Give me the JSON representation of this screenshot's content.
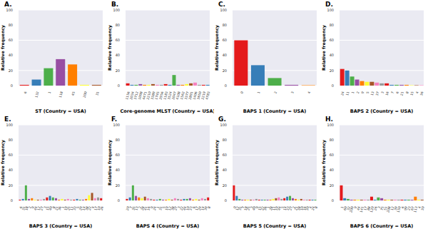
{
  "chart_data": [
    {
      "type": "bar",
      "title": "A.",
      "x_label": "ST (Country = USA)",
      "y_label": "Relative frequency",
      "categories": [
        "6",
        "132",
        "1",
        "118",
        "45",
        "200",
        "31"
      ],
      "values": [
        1,
        8,
        23,
        35,
        28,
        1,
        1
      ],
      "colors": [
        "#e41a1c",
        "#377eb8",
        "#4daf4a",
        "#984ea3",
        "#ff7f00",
        "#ffff33",
        "#a65628"
      ],
      "ylim": [
        0,
        100
      ],
      "yticks": [
        0,
        20,
        40,
        60,
        80,
        100
      ],
      "grid": true
    },
    {
      "type": "bar",
      "title": "B.",
      "x_label": "Core-genome MLST (Country = USA)",
      "y_label": "Relative frequency",
      "categories": [
        "1156",
        "2034",
        "3712",
        "1098",
        "4471",
        "2210",
        "3389",
        "1745",
        "2956",
        "1183",
        "3524",
        "2047",
        "4108",
        "1562",
        "3377",
        "2891",
        "1406",
        "3650",
        "2219",
        "4783"
      ],
      "values": [
        3,
        1,
        1,
        2,
        1,
        1,
        2,
        1,
        1,
        2,
        1,
        14,
        1,
        1,
        2,
        3,
        4,
        1,
        1,
        1
      ],
      "colors": [
        "#e41a1c",
        "#377eb8",
        "#4daf4a",
        "#984ea3",
        "#ff7f00",
        "#ffff33",
        "#a65628",
        "#f781bf",
        "#999999",
        "#e41a1c",
        "#377eb8",
        "#4daf4a",
        "#984ea3",
        "#ff7f00",
        "#ffff33",
        "#a65628",
        "#f781bf",
        "#999999",
        "#e41a1c",
        "#377eb8"
      ],
      "ylim": [
        0,
        100
      ],
      "yticks": [
        0,
        20,
        40,
        60,
        80,
        100
      ],
      "grid": true
    },
    {
      "type": "bar",
      "title": "C.",
      "x_label": "BAPS 1 (Country = USA)",
      "y_label": "Relative frequency",
      "categories": [
        "0",
        "1",
        "2",
        "3",
        "4"
      ],
      "values": [
        60,
        27,
        10,
        1,
        0.5
      ],
      "colors": [
        "#e41a1c",
        "#377eb8",
        "#4daf4a",
        "#984ea3",
        "#ff7f00"
      ],
      "ylim": [
        0,
        100
      ],
      "yticks": [
        0,
        20,
        40,
        60,
        80,
        100
      ],
      "grid": true
    },
    {
      "type": "bar",
      "title": "D.",
      "x_label": "BAPS 2 (Country = USA)",
      "y_label": "Relative frequency",
      "categories": [
        "24",
        "11",
        "1",
        "2",
        "9",
        "5",
        "13",
        "37",
        "3",
        "16",
        "7",
        "6",
        "21",
        "8",
        "15",
        "4",
        "36"
      ],
      "values": [
        22,
        20,
        12,
        8,
        6,
        5,
        5,
        4,
        3,
        3,
        1,
        1,
        1,
        1,
        0.5,
        0.5,
        0.5
      ],
      "colors": [
        "#e41a1c",
        "#377eb8",
        "#4daf4a",
        "#984ea3",
        "#ff7f00",
        "#ffff33",
        "#a65628",
        "#f781bf",
        "#999999",
        "#e41a1c",
        "#377eb8",
        "#4daf4a",
        "#984ea3",
        "#ff7f00",
        "#ffff33",
        "#a65628",
        "#f781bf"
      ],
      "ylim": [
        0,
        100
      ],
      "yticks": [
        0,
        20,
        40,
        60,
        80,
        100
      ],
      "grid": true
    },
    {
      "type": "bar",
      "title": "E.",
      "x_label": "BAPS 3 (Country = USA)",
      "y_label": "Relative frequency",
      "categories": [
        "6",
        "31",
        "18",
        "2",
        "9",
        "44",
        "12",
        "27",
        "3",
        "15",
        "40",
        "8",
        "21",
        "36",
        "1",
        "19",
        "25",
        "11",
        "33",
        "5",
        "29",
        "14",
        "38",
        "22",
        "4",
        "17",
        "10",
        "26"
      ],
      "values": [
        1,
        2,
        20,
        2,
        3,
        1,
        1,
        1,
        2,
        4,
        6,
        4,
        3,
        1,
        2,
        1,
        2,
        1,
        1,
        2,
        1,
        1,
        2,
        7,
        10,
        3,
        4,
        3
      ],
      "colors": [
        "#e41a1c",
        "#377eb8",
        "#4daf4a",
        "#984ea3",
        "#ff7f00",
        "#ffff33",
        "#a65628",
        "#f781bf",
        "#999999",
        "#e41a1c",
        "#377eb8",
        "#4daf4a",
        "#984ea3",
        "#ff7f00",
        "#ffff33",
        "#a65628",
        "#f781bf",
        "#999999",
        "#e41a1c",
        "#377eb8",
        "#4daf4a",
        "#984ea3",
        "#ff7f00",
        "#ffff33",
        "#a65628",
        "#f781bf",
        "#999999",
        "#e41a1c"
      ],
      "ylim": [
        0,
        100
      ],
      "yticks": [
        0,
        20,
        40,
        60,
        80,
        100
      ],
      "grid": true
    },
    {
      "type": "bar",
      "title": "F.",
      "x_label": "BAPS 4 (Country = USA)",
      "y_label": "Relative frequency",
      "categories": [
        "20",
        "7",
        "35",
        "13",
        "2",
        "28",
        "41",
        "16",
        "9",
        "24",
        "1",
        "31",
        "5",
        "19",
        "12",
        "38",
        "27",
        "3",
        "22",
        "44",
        "10",
        "33",
        "6",
        "17",
        "29",
        "14",
        "39",
        "8"
      ],
      "values": [
        2,
        4,
        20,
        6,
        4,
        3,
        5,
        3,
        2,
        1,
        1,
        2,
        1,
        1,
        2,
        1,
        3,
        2,
        1,
        2,
        2,
        3,
        1,
        2,
        1,
        3,
        2,
        4
      ],
      "colors": [
        "#e41a1c",
        "#377eb8",
        "#4daf4a",
        "#984ea3",
        "#ff7f00",
        "#ffff33",
        "#a65628",
        "#f781bf",
        "#999999",
        "#e41a1c",
        "#377eb8",
        "#4daf4a",
        "#984ea3",
        "#ff7f00",
        "#ffff33",
        "#a65628",
        "#f781bf",
        "#999999",
        "#e41a1c",
        "#377eb8",
        "#4daf4a",
        "#984ea3",
        "#ff7f00",
        "#ffff33",
        "#a65628",
        "#f781bf",
        "#999999",
        "#e41a1c"
      ],
      "ylim": [
        0,
        100
      ],
      "yticks": [
        0,
        20,
        40,
        60,
        80,
        100
      ],
      "grid": true
    },
    {
      "type": "bar",
      "title": "G.",
      "x_label": "BAPS 5 (Country = USA)",
      "y_label": "Relative frequency",
      "categories": [
        "0",
        "12",
        "31",
        "7",
        "18",
        "25",
        "3",
        "40",
        "9",
        "15",
        "22",
        "36",
        "1",
        "28",
        "11",
        "19",
        "44",
        "5",
        "14",
        "33",
        "27",
        "2",
        "21",
        "38",
        "10",
        "16",
        "30",
        "4",
        "24",
        "8"
      ],
      "values": [
        20,
        6,
        2,
        1,
        1,
        1,
        1,
        1,
        2,
        1,
        1,
        1,
        1,
        1,
        2,
        3,
        4,
        2,
        3,
        5,
        6,
        3,
        2,
        1,
        2,
        1,
        1,
        1,
        1,
        1
      ],
      "colors": [
        "#e41a1c",
        "#377eb8",
        "#4daf4a",
        "#984ea3",
        "#ff7f00",
        "#ffff33",
        "#a65628",
        "#f781bf",
        "#999999",
        "#e41a1c",
        "#377eb8",
        "#4daf4a",
        "#984ea3",
        "#ff7f00",
        "#ffff33",
        "#a65628",
        "#f781bf",
        "#999999",
        "#e41a1c",
        "#377eb8",
        "#4daf4a",
        "#984ea3",
        "#ff7f00",
        "#ffff33",
        "#a65628",
        "#f781bf",
        "#999999",
        "#e41a1c",
        "#377eb8",
        "#4daf4a"
      ],
      "ylim": [
        0,
        100
      ],
      "yticks": [
        0,
        20,
        40,
        60,
        80,
        100
      ],
      "grid": true
    },
    {
      "type": "bar",
      "title": "H.",
      "x_label": "BAPS 6 (Country = USA)",
      "y_label": "Relative frequency",
      "categories": [
        "1",
        "60",
        "32",
        "200",
        "9",
        "44",
        "141",
        "17",
        "88",
        "120",
        "26",
        "3",
        "75",
        "51",
        "208",
        "12",
        "39",
        "150",
        "6",
        "99",
        "23",
        "67",
        "113",
        "4",
        "30"
      ],
      "values": [
        20,
        3,
        2,
        1,
        1,
        1,
        1,
        1,
        1,
        5,
        1,
        4,
        3,
        1,
        1,
        1,
        1,
        1,
        1,
        1,
        1,
        1,
        5,
        1,
        1
      ],
      "colors": [
        "#e41a1c",
        "#377eb8",
        "#4daf4a",
        "#984ea3",
        "#ff7f00",
        "#ffff33",
        "#a65628",
        "#f781bf",
        "#999999",
        "#e41a1c",
        "#377eb8",
        "#4daf4a",
        "#984ea3",
        "#ff7f00",
        "#ffff33",
        "#a65628",
        "#f781bf",
        "#999999",
        "#e41a1c",
        "#377eb8",
        "#4daf4a",
        "#984ea3",
        "#ff7f00",
        "#ffff33",
        "#a65628"
      ],
      "ylim": [
        0,
        100
      ],
      "yticks": [
        0,
        20,
        40,
        60,
        80,
        100
      ],
      "grid": true
    }
  ]
}
